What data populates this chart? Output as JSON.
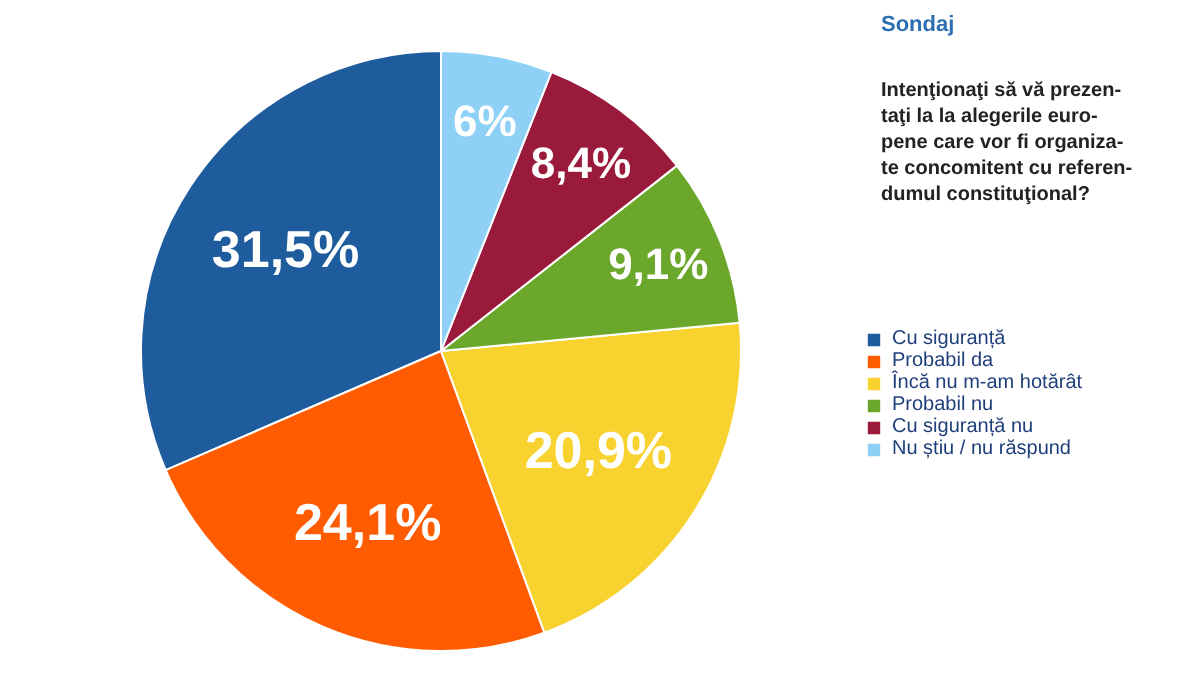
{
  "chart_data": {
    "type": "pie",
    "title": "Sondaj",
    "subtitle": "Intenţionaţi să vă prezen-\ntaţi la la alegerile euro-\npene care vor fi organiza-\nte concomitent cu referen-\ndumul constituţional?",
    "categories": [
      "Cu siguranță",
      "Probabil da",
      "Încă nu m-am hotărât",
      "Probabil nu",
      "Cu siguranță nu",
      "Nu știu / nu răspund"
    ],
    "values": [
      31.5,
      24.1,
      20.9,
      9.1,
      8.4,
      6
    ],
    "colors": [
      "#1f5c9e",
      "#ff5b00",
      "#f8d22f",
      "#6aa72b",
      "#9a1a3c",
      "#8fd1f6"
    ],
    "value_labels": [
      "31,5%",
      "24,1%",
      "20,9%",
      "9,1%",
      "8,4%",
      "6%"
    ],
    "legend": "right"
  }
}
